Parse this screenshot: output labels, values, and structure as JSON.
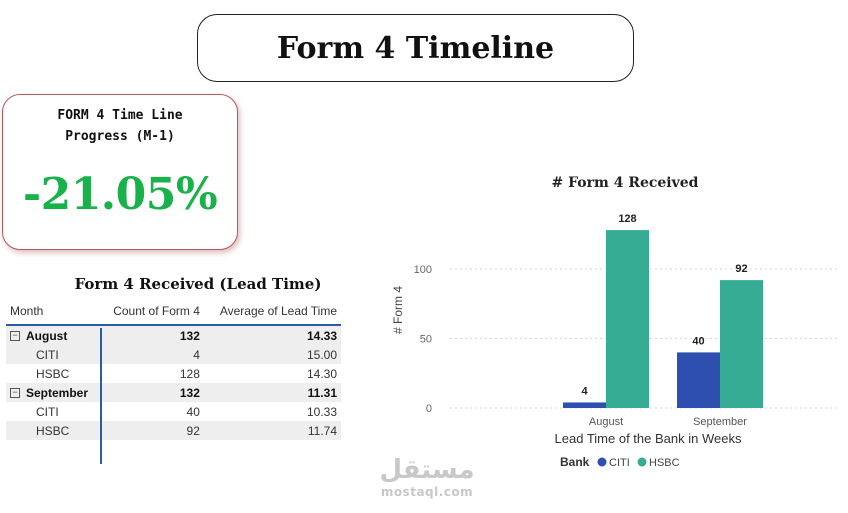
{
  "header": {
    "title": "Form 4 Timeline"
  },
  "kpi": {
    "label_line1": "FORM 4 Time Line",
    "label_line2": "Progress (M-1)",
    "value": "-21.05%",
    "value_color": "#19b14a"
  },
  "table": {
    "title": "Form 4 Received (Lead Time)",
    "columns": [
      "Month",
      "Count of Form 4",
      "Average of Lead Time"
    ],
    "rows": [
      {
        "label": "August",
        "count": "132",
        "avg": "14.33",
        "level": "month",
        "toggle": "⊟"
      },
      {
        "label": "CITI",
        "count": "4",
        "avg": "15.00",
        "level": "sub"
      },
      {
        "label": "HSBC",
        "count": "128",
        "avg": "14.30",
        "level": "sub"
      },
      {
        "label": "September",
        "count": "132",
        "avg": "11.31",
        "level": "month",
        "toggle": "⊟"
      },
      {
        "label": "CITI",
        "count": "40",
        "avg": "10.33",
        "level": "sub"
      },
      {
        "label": "HSBC",
        "count": "92",
        "avg": "11.74",
        "level": "sub"
      }
    ]
  },
  "chart_data": {
    "type": "bar",
    "title": "# Form 4 Received",
    "xlabel": "Lead Time of the Bank in Weeks",
    "ylabel": "# Form 4",
    "categories": [
      "August",
      "September"
    ],
    "series": [
      {
        "name": "CITI",
        "values": [
          4,
          40
        ],
        "color": "#2e4fb0"
      },
      {
        "name": "HSBC",
        "values": [
          128,
          92
        ],
        "color": "#36ac94"
      }
    ],
    "yticks": [
      0,
      50,
      100
    ],
    "ylim": [
      0,
      140
    ],
    "legend_title": "Bank",
    "legend_position": "bottom",
    "grid": true
  },
  "watermark": {
    "arabic": "مستقل",
    "latin": "mostaql.com"
  }
}
